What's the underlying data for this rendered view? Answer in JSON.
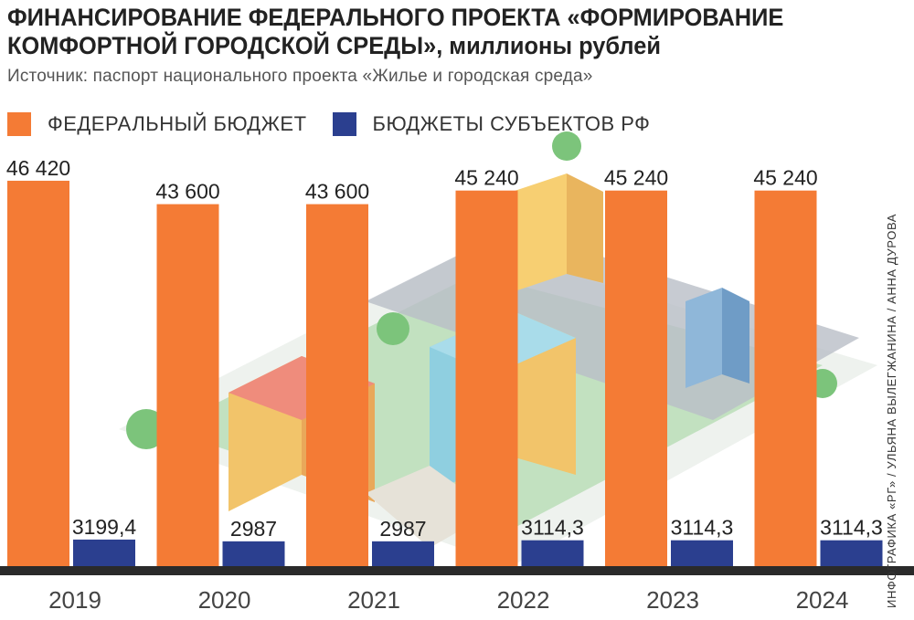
{
  "header": {
    "title": "ФИНАНСИРОВАНИЕ ФЕДЕРАЛЬНОГО ПРОЕКТА «ФОРМИРОВАНИЕ КОМФОРТНОЙ ГОРОДСКОЙ СРЕДЫ», миллионы рублей",
    "source": "Источник: паспорт национального проекта «Жилье и городская среда»",
    "credit": "ИНФОГРАФИКА «РГ» / УЛЬЯНА ВЫЛЕГЖАНИНА / АННА ДУРОВА"
  },
  "colors": {
    "federal": "#f47b35",
    "regional": "#2b3f8f",
    "baseline": "#2a2a2a",
    "background_park": "#9fd39a",
    "background_road": "#b9bec7"
  },
  "chart_data": {
    "type": "bar",
    "categories": [
      "2019",
      "2020",
      "2021",
      "2022",
      "2023",
      "2024"
    ],
    "series": [
      {
        "name": "ФЕДЕРАЛЬНЫЙ БЮДЖЕТ",
        "values": [
          46420,
          43600,
          43600,
          45240,
          45240,
          45240
        ],
        "labels": [
          "46 420",
          "43 600",
          "43 600",
          "45 240",
          "45 240",
          "45 240"
        ]
      },
      {
        "name": "БЮДЖЕТЫ СУБЪЕКТОВ РФ",
        "values": [
          3199.4,
          2987,
          2987,
          3114.3,
          3114.3,
          3114.3
        ],
        "labels": [
          "3199,4",
          "2987",
          "2987",
          "3114,3",
          "3114,3",
          "3114,3"
        ]
      }
    ],
    "legend_position": "top-left",
    "grid": false
  }
}
